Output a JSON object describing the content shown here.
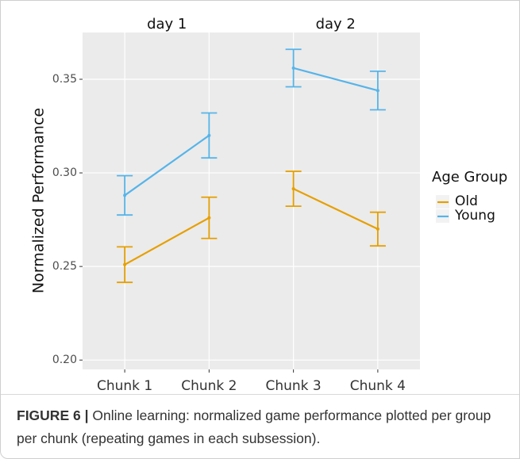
{
  "chart_data": {
    "type": "line",
    "y_label": "Normalized Performance",
    "facet_labels": [
      "day 1",
      "day 2"
    ],
    "categories": [
      "Chunk 1",
      "Chunk 2",
      "Chunk 3",
      "Chunk 4"
    ],
    "series": [
      {
        "name": "Old",
        "color": "#e69f00",
        "values": [
          0.251,
          0.276,
          0.2915,
          0.27
        ],
        "errors": [
          0.0095,
          0.011,
          0.0093,
          0.009
        ]
      },
      {
        "name": "Young",
        "color": "#56b4e9",
        "values": [
          0.288,
          0.32,
          0.356,
          0.344
        ],
        "errors": [
          0.0105,
          0.012,
          0.01,
          0.0103
        ]
      }
    ],
    "ylim": [
      0.195,
      0.375
    ],
    "yticks": [
      {
        "value": 0.2,
        "label": "0.20"
      },
      {
        "value": 0.25,
        "label": "0.25"
      },
      {
        "value": 0.3,
        "label": "0.30"
      },
      {
        "value": 0.35,
        "label": "0.35"
      }
    ],
    "grid": true,
    "legend_title": "Age Group",
    "legend_position": "right"
  },
  "caption_label": "FIGURE 6 |",
  "caption": "Online learning: normalized game performance plotted per group per chunk (repeating games in each subsession)."
}
